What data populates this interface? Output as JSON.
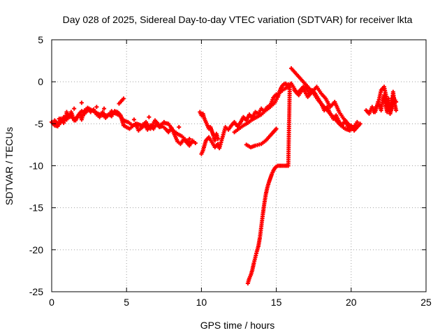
{
  "chart_data": {
    "type": "scatter",
    "title": "Day 028 of 2025, Sidereal Day-to-day VTEC variation (SDTVAR) for receiver lkta",
    "xlabel": "GPS time / hours",
    "ylabel": "SDTVAR / TECUs",
    "xlim": [
      0,
      25
    ],
    "ylim": [
      -25,
      5
    ],
    "xticks": [
      0,
      5,
      10,
      15,
      20,
      25
    ],
    "yticks": [
      5,
      0,
      -5,
      -10,
      -15,
      -20,
      -25
    ],
    "grid": true,
    "marker": "plus",
    "color": "#ff0000",
    "series": [
      {
        "name": "SDTVAR",
        "x": [
          0.0,
          0.2,
          0.4,
          0.5,
          0.6,
          0.8,
          1.0,
          1.2,
          1.3,
          1.5,
          1.7,
          1.9,
          2.0,
          2.2,
          2.4,
          2.6,
          2.8,
          3.0,
          3.2,
          3.4,
          3.6,
          3.8,
          4.0,
          4.2,
          4.4,
          4.6,
          4.8,
          5.0,
          5.2,
          5.4,
          5.6,
          5.8,
          6.0,
          6.2,
          6.4,
          6.6,
          6.8,
          7.0,
          7.2,
          7.4,
          7.6,
          7.8,
          8.0,
          8.2,
          8.4,
          8.6,
          8.8,
          9.0,
          9.2,
          9.4,
          9.6,
          0.2,
          0.4,
          0.6,
          0.8,
          1.0,
          1.2,
          1.4,
          1.6,
          1.8,
          2.0,
          2.2,
          2.5,
          2.8,
          3.1,
          3.4,
          3.7,
          4.0,
          4.3,
          4.6,
          4.8,
          5.1,
          5.4,
          5.7,
          6.0,
          6.3,
          6.6,
          6.9,
          7.2,
          7.5,
          7.8,
          8.1,
          8.4,
          8.7,
          9.0,
          9.3,
          0.5,
          1.0,
          1.5,
          2.0,
          3.0,
          3.5,
          4.0,
          4.5,
          4.8,
          5.5,
          6.5,
          7.5,
          8.5,
          9.2,
          9.9,
          10.0,
          10.1,
          10.2,
          10.3,
          10.4,
          10.5,
          10.6,
          10.7,
          10.8,
          10.9,
          11.0,
          11.1,
          10.0,
          10.1,
          10.2,
          10.3,
          10.5,
          10.7,
          10.9,
          11.1,
          11.2,
          11.6,
          11.8,
          12.0,
          12.2,
          12.4,
          12.6,
          12.8,
          13.0,
          13.2,
          13.4,
          13.6,
          13.8,
          14.0,
          14.2,
          14.4,
          14.6,
          14.8,
          15.0,
          15.1,
          15.2,
          15.3,
          15.4,
          15.5,
          15.6,
          15.7,
          15.8,
          12.2,
          12.5,
          12.8,
          13.1,
          13.4,
          13.7,
          14.0,
          14.3,
          14.6,
          14.9,
          15.2,
          15.5,
          15.8,
          13.0,
          13.3,
          13.6,
          14.0,
          14.3,
          14.6,
          14.8,
          14.9,
          15.0,
          13.1,
          13.2,
          13.3,
          13.4,
          13.5,
          13.6,
          13.7,
          13.8,
          13.9,
          14.0,
          14.1,
          14.2,
          14.3,
          14.4,
          14.5,
          14.6,
          14.7,
          14.8,
          14.9,
          15.0,
          15.1,
          15.2,
          15.3,
          15.4,
          15.5,
          15.6,
          15.7,
          15.8,
          15.9,
          16.0,
          16.2,
          16.4,
          16.6,
          16.8,
          17.0,
          17.2,
          17.4,
          17.6,
          17.8,
          18.0,
          18.2,
          18.4,
          18.6,
          18.8,
          19.0,
          19.2,
          19.4,
          19.6,
          19.8,
          20.0,
          20.2,
          20.4,
          20.6,
          16.0,
          16.3,
          16.6,
          16.9,
          17.2,
          17.5,
          17.8,
          18.1,
          18.4,
          18.7,
          19.0,
          19.3,
          19.6,
          19.9,
          20.2,
          16.2,
          16.5,
          16.8,
          17.1,
          17.4,
          17.7,
          18.0,
          18.3,
          18.6,
          18.9,
          19.2,
          19.5,
          19.8,
          20.1,
          20.4,
          21.0,
          21.2,
          21.4,
          21.6,
          21.8,
          22.0,
          22.1,
          22.2,
          22.3,
          22.4,
          22.5,
          22.6,
          22.7,
          22.8,
          22.9,
          23.0,
          21.5,
          21.8,
          22.0,
          22.2,
          22.4,
          22.6,
          22.8,
          23.0
        ],
        "y": [
          -4.8,
          -5.2,
          -5.3,
          -4.8,
          -4.4,
          -4.9,
          -3.8,
          -4.2,
          -3.6,
          -4.6,
          -4.2,
          -3.9,
          -4.5,
          -3.4,
          -3.1,
          -3.6,
          -3.3,
          -3.9,
          -4.2,
          -3.6,
          -4.3,
          -3.9,
          -4.1,
          -3.5,
          -3.6,
          -4.0,
          -5.2,
          -5.4,
          -5.6,
          -5.3,
          -5.0,
          -5.8,
          -5.5,
          -5.1,
          -5.7,
          -5.2,
          -5.6,
          -5.0,
          -5.4,
          -5.3,
          -5.6,
          -6.0,
          -5.5,
          -6.3,
          -7.1,
          -7.4,
          -6.9,
          -7.2,
          -7.6,
          -7.0,
          -7.3,
          -4.6,
          -5.0,
          -4.9,
          -4.2,
          -4.5,
          -4.0,
          -4.3,
          -4.6,
          -3.9,
          -3.5,
          -3.8,
          -3.2,
          -3.5,
          -3.8,
          -4.0,
          -4.0,
          -3.6,
          -3.8,
          -4.1,
          -4.6,
          -4.8,
          -5.2,
          -5.0,
          -5.2,
          -4.8,
          -5.6,
          -4.6,
          -5.2,
          -4.9,
          -5.0,
          -5.8,
          -6.2,
          -6.5,
          -7.0,
          -7.3,
          -4.4,
          -3.6,
          -3.2,
          -2.5,
          -3.0,
          -3.2,
          -3.5,
          -2.6,
          -2.0,
          -4.5,
          -4.2,
          -4.8,
          -5.4,
          -6.8,
          -3.6,
          -4.0,
          -3.8,
          -4.4,
          -4.8,
          -5.2,
          -5.6,
          -5.4,
          -5.9,
          -6.4,
          -7.0,
          -6.2,
          -6.8,
          -8.6,
          -8.2,
          -7.6,
          -7.0,
          -6.6,
          -7.2,
          -7.8,
          -7.4,
          -7.9,
          -5.4,
          -5.7,
          -5.2,
          -4.8,
          -5.3,
          -4.9,
          -4.2,
          -4.6,
          -3.9,
          -4.3,
          -3.6,
          -3.8,
          -3.2,
          -3.5,
          -3.0,
          -2.8,
          -1.9,
          -1.5,
          -1.8,
          -1.2,
          -0.8,
          -0.5,
          -0.3,
          -0.2,
          -0.4,
          -0.3,
          -6.0,
          -5.6,
          -5.2,
          -4.9,
          -4.5,
          -4.2,
          -3.9,
          -3.4,
          -3.0,
          -2.5,
          -1.4,
          -0.9,
          -0.6,
          -7.5,
          -7.8,
          -7.6,
          -7.4,
          -7.0,
          -6.4,
          -6.0,
          -5.8,
          -5.6,
          -24.0,
          -23.4,
          -23.0,
          -22.4,
          -21.6,
          -20.9,
          -20.2,
          -19.6,
          -18.6,
          -17.2,
          -15.8,
          -14.5,
          -13.4,
          -12.6,
          -12.0,
          -11.5,
          -11.0,
          -10.6,
          -10.3,
          -10.1,
          -10.0,
          -10.0,
          -10.0,
          -10.0,
          -10.0,
          -10.0,
          -10.0,
          -10.0,
          -0.4,
          -0.2,
          -0.8,
          -1.4,
          -1.0,
          -0.6,
          -0.8,
          -1.4,
          -1.0,
          -1.4,
          -2.0,
          -2.6,
          -3.4,
          -3.0,
          -3.8,
          -4.4,
          -4.0,
          -4.8,
          -5.2,
          -4.6,
          -5.5,
          -5.2,
          -5.8,
          -5.4,
          -5.0,
          1.6,
          1.0,
          0.4,
          -0.2,
          -0.8,
          -1.4,
          -2.2,
          -2.8,
          -3.4,
          -4.0,
          -4.6,
          -5.2,
          -5.6,
          -5.8,
          -5.4,
          -1.0,
          -1.6,
          -0.8,
          -1.8,
          -1.2,
          -0.6,
          -1.4,
          -2.0,
          -3.0,
          -2.4,
          -3.6,
          -4.4,
          -5.0,
          -5.6,
          -4.8,
          -3.4,
          -3.8,
          -3.0,
          -3.6,
          -2.4,
          -3.4,
          -2.2,
          -1.6,
          -2.8,
          -3.6,
          -2.0,
          -3.8,
          -3.2,
          -1.2,
          -2.6,
          -3.4,
          -3.6,
          -2.6,
          -1.0,
          -0.6,
          -2.2,
          -3.8,
          -1.8,
          -2.4
        ]
      }
    ]
  }
}
